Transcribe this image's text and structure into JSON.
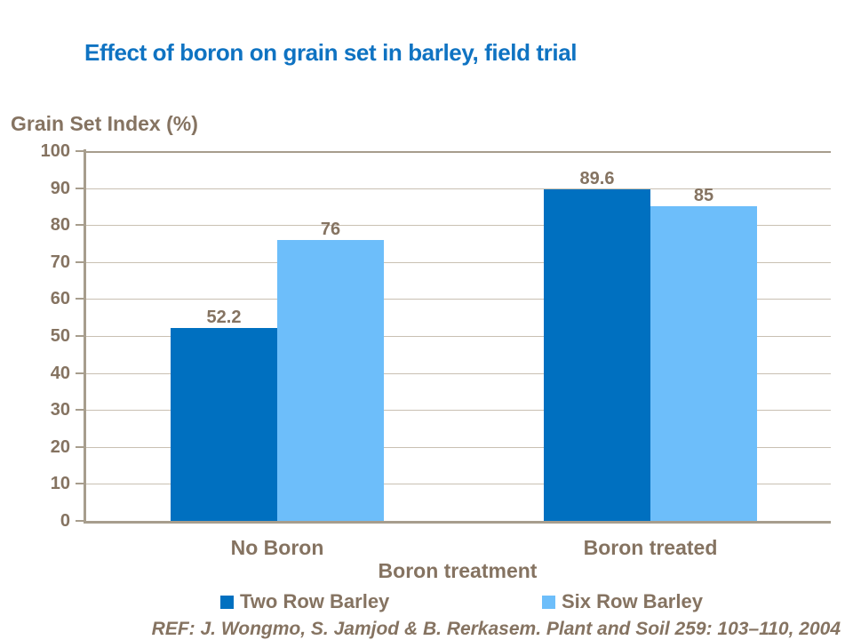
{
  "slide": {
    "background": "#FFFFFF",
    "reference": "REF: J. Wongmo, S. Jamjod & B. Rerkasem. Plant and Soil 259: 103–110, 2004"
  },
  "colors": {
    "title": "#0F73C2",
    "text": "#857361",
    "axis": "#A79D8D",
    "gridline": "#C9C0B2",
    "series_dark": "#0070C0",
    "series_light": "#6DBEFA"
  },
  "chart_data": {
    "type": "bar",
    "title": "Effect of boron on grain set in barley, field trial",
    "ylabel": "Grain Set Index (%)",
    "xlabel": "Boron treatment",
    "categories": [
      "No Boron",
      "Boron treated"
    ],
    "series": [
      {
        "name": "Two Row Barley",
        "color": "#0070C0",
        "values": [
          52.2,
          89.6
        ],
        "labels": [
          "52.2",
          "89.6"
        ]
      },
      {
        "name": "Six Row Barley",
        "color": "#6DBEFA",
        "values": [
          76,
          85
        ],
        "labels": [
          "76",
          "85"
        ]
      }
    ],
    "ylim": [
      0,
      100
    ],
    "ytick_step": 10,
    "grid": true,
    "legend_position": "bottom"
  }
}
